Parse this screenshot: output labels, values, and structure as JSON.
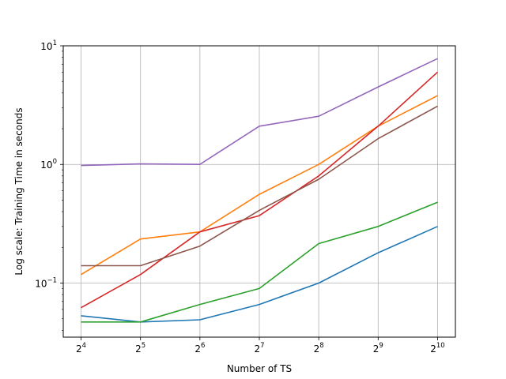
{
  "chart_data": {
    "type": "line",
    "xlabel": "Number of TS",
    "ylabel": "Log scale: Training Time in seconds",
    "x_scale": "log2",
    "y_scale": "log10",
    "x": [
      16,
      32,
      64,
      128,
      256,
      512,
      1024
    ],
    "x_tick_labels": [
      {
        "base": "2",
        "exp": "4"
      },
      {
        "base": "2",
        "exp": "5"
      },
      {
        "base": "2",
        "exp": "6"
      },
      {
        "base": "2",
        "exp": "7"
      },
      {
        "base": "2",
        "exp": "8"
      },
      {
        "base": "2",
        "exp": "9"
      },
      {
        "base": "2",
        "exp": "10"
      }
    ],
    "y_ticks": [
      0.1,
      1,
      10
    ],
    "y_tick_labels": [
      {
        "base": "10",
        "exp": "−1"
      },
      {
        "base": "10",
        "exp": "0"
      },
      {
        "base": "10",
        "exp": "1"
      }
    ],
    "ylim": [
      0.035,
      10
    ],
    "grid": true,
    "series": [
      {
        "color": "#1f77b4",
        "values": [
          0.053,
          0.047,
          0.049,
          0.066,
          0.1,
          0.18,
          0.3
        ]
      },
      {
        "color": "#ff7f0e",
        "values": [
          0.118,
          0.235,
          0.27,
          0.56,
          1.0,
          2.1,
          3.8
        ]
      },
      {
        "color": "#2ca02c",
        "values": [
          0.047,
          0.047,
          0.066,
          0.09,
          0.215,
          0.3,
          0.48
        ]
      },
      {
        "color": "#d62728",
        "values": [
          0.062,
          0.118,
          0.27,
          0.37,
          0.8,
          2.1,
          6.0
        ]
      },
      {
        "color": "#9467bd",
        "values": [
          0.98,
          1.01,
          1.0,
          2.1,
          2.55,
          4.5,
          7.8
        ]
      },
      {
        "color": "#8c564b",
        "values": [
          0.14,
          0.14,
          0.205,
          0.41,
          0.75,
          1.65,
          3.1
        ]
      }
    ]
  }
}
